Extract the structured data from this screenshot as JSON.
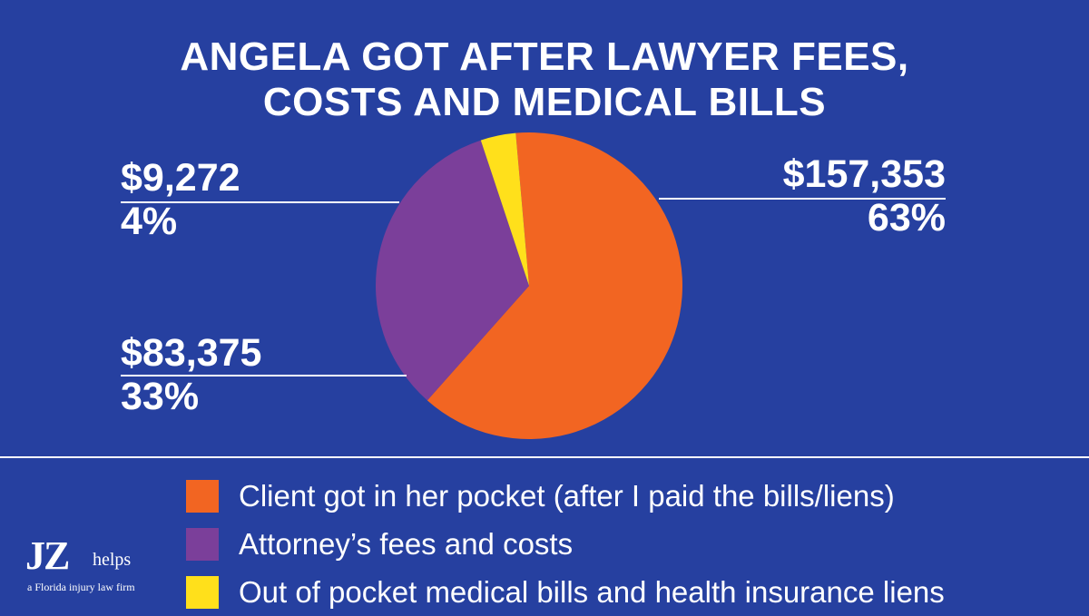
{
  "chart_data": {
    "type": "pie",
    "title": "ANGELA GOT AFTER LAWYER FEES, COSTS AND MEDICAL BILLS",
    "title_lines": [
      "ANGELA GOT AFTER LAWYER FEES,",
      "COSTS AND MEDICAL BILLS"
    ],
    "slices": [
      {
        "key": "client",
        "label": "Client got in her pocket (after I paid the bills/liens)",
        "value": 157353,
        "value_label": "$157,353",
        "percent_label": "63%",
        "color": "#f26522"
      },
      {
        "key": "attorney",
        "label": "Attorney’s fees and costs",
        "value": 83375,
        "value_label": "$83,375",
        "percent_label": "33%",
        "color": "#7b3f9a"
      },
      {
        "key": "medical",
        "label": "Out of pocket medical bills and health insurance liens",
        "value": 9272,
        "value_label": "$9,272",
        "percent_label": "4%",
        "color": "#ffe01b"
      }
    ],
    "legend_position": "bottom"
  },
  "colors": {
    "background": "#2640a0",
    "text": "#ffffff"
  },
  "logo": {
    "mark": "JZ",
    "word": "helps",
    "tagline": "a Florida injury law firm"
  }
}
